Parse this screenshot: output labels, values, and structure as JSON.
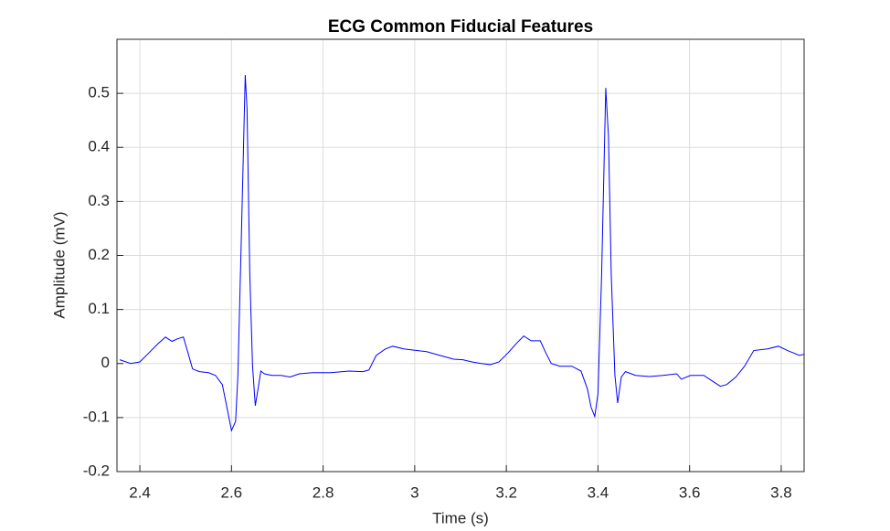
{
  "chart_data": {
    "type": "line",
    "title": "ECG Common Fiducial Features",
    "x_label": "Time (s)",
    "y_label": "Amplitude (mV)",
    "color": "#0000ff",
    "grid": true,
    "xlim": [
      2.35,
      3.85
    ],
    "ylim": [
      -0.2,
      0.6
    ],
    "xticks": [
      2.4,
      2.6,
      2.8,
      3,
      3.2,
      3.4,
      3.6,
      3.8
    ],
    "yticks": [
      -0.2,
      -0.1,
      0,
      0.1,
      0.2,
      0.3,
      0.4,
      0.5
    ],
    "x": [
      2.356,
      2.38,
      2.4,
      2.42,
      2.44,
      2.456,
      2.47,
      2.483,
      2.495,
      2.505,
      2.515,
      2.53,
      2.55,
      2.565,
      2.58,
      2.59,
      2.6,
      2.609,
      2.614,
      2.622,
      2.63,
      2.634,
      2.64,
      2.646,
      2.652,
      2.658,
      2.664,
      2.672,
      2.688,
      2.708,
      2.728,
      2.748,
      2.777,
      2.817,
      2.857,
      2.887,
      2.9,
      2.916,
      2.936,
      2.952,
      2.976,
      2.996,
      3.026,
      3.055,
      3.085,
      3.105,
      3.125,
      3.145,
      3.165,
      3.184,
      3.204,
      3.224,
      3.238,
      3.254,
      3.274,
      3.286,
      3.298,
      3.317,
      3.343,
      3.363,
      3.377,
      3.385,
      3.393,
      3.4,
      3.408,
      3.417,
      3.423,
      3.429,
      3.437,
      3.443,
      3.451,
      3.46,
      3.482,
      3.512,
      3.542,
      3.572,
      3.582,
      3.602,
      3.631,
      3.647,
      3.667,
      3.681,
      3.701,
      3.72,
      3.74,
      3.77,
      3.794,
      3.814,
      3.84,
      3.85
    ],
    "values": [
      0.007,
      0.0,
      0.003,
      0.02,
      0.037,
      0.049,
      0.041,
      0.046,
      0.049,
      0.02,
      -0.01,
      -0.015,
      -0.017,
      -0.022,
      -0.039,
      -0.081,
      -0.124,
      -0.107,
      -0.022,
      0.249,
      0.534,
      0.47,
      0.164,
      -0.005,
      -0.078,
      -0.047,
      -0.014,
      -0.019,
      -0.022,
      -0.022,
      -0.025,
      -0.019,
      -0.017,
      -0.017,
      -0.014,
      -0.015,
      -0.012,
      0.015,
      0.027,
      0.032,
      0.027,
      0.025,
      0.022,
      0.015,
      0.008,
      0.007,
      0.003,
      0.0,
      -0.002,
      0.003,
      0.02,
      0.039,
      0.051,
      0.042,
      0.042,
      0.02,
      0.0,
      -0.005,
      -0.005,
      -0.014,
      -0.047,
      -0.081,
      -0.098,
      -0.056,
      0.164,
      0.51,
      0.419,
      0.164,
      -0.022,
      -0.073,
      -0.025,
      -0.015,
      -0.022,
      -0.024,
      -0.022,
      -0.019,
      -0.029,
      -0.022,
      -0.022,
      -0.031,
      -0.042,
      -0.039,
      -0.025,
      -0.005,
      0.024,
      0.027,
      0.032,
      0.024,
      0.015,
      0.017
    ]
  }
}
